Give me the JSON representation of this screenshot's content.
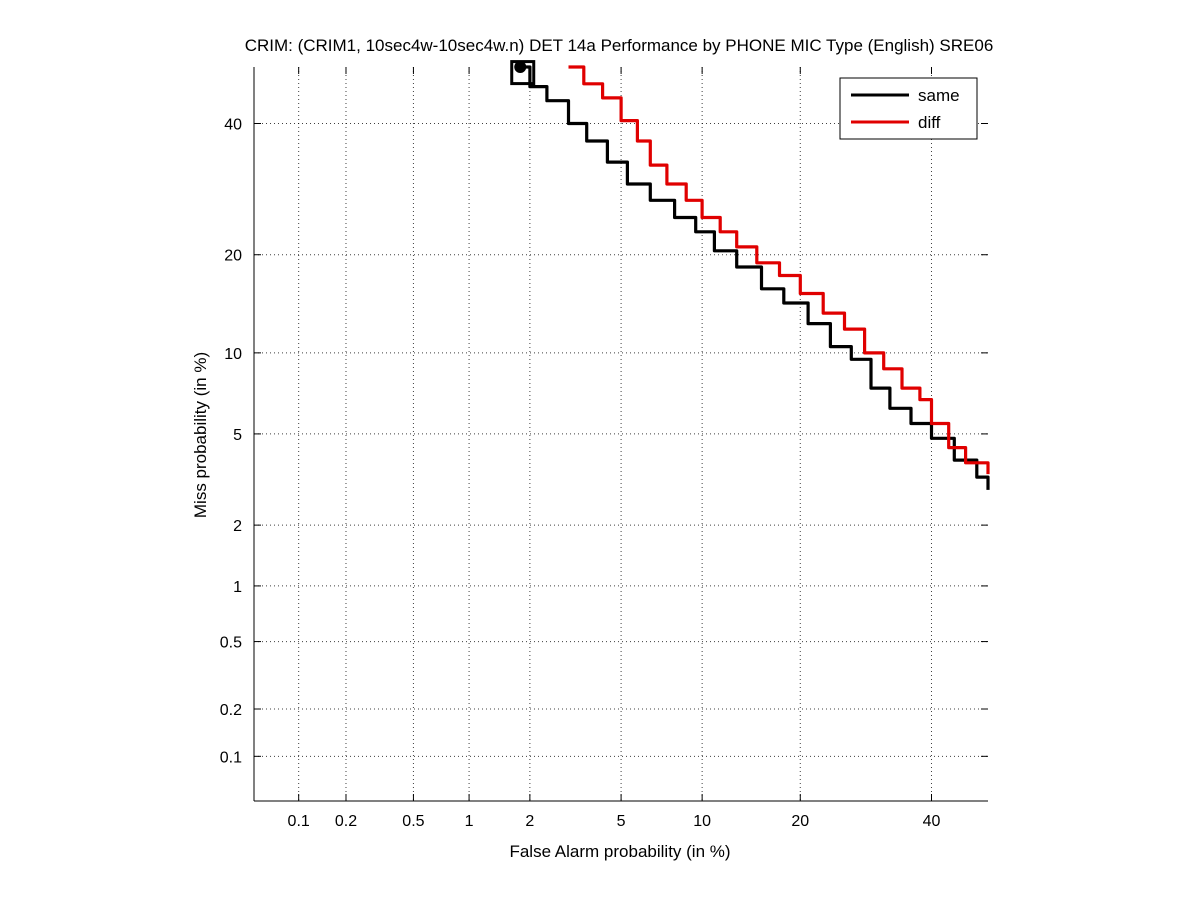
{
  "chart_data": {
    "type": "line",
    "title": "CRIM: (CRIM1, 10sec4w-10sec4w.n) DET 14a Performance by PHONE MIC Type (English) SRE06",
    "xlabel": "False Alarm probability (in %)",
    "ylabel": "Miss probability (in %)",
    "x_scale": "normal-deviate (probit)",
    "y_scale": "normal-deviate (probit)",
    "xlim": [
      0.05,
      50
    ],
    "ylim": [
      0.05,
      50
    ],
    "x_ticks": [
      0.1,
      0.2,
      0.5,
      1,
      2,
      5,
      10,
      20,
      40
    ],
    "x_tick_labels": [
      "0.1",
      "0.2",
      "0.5",
      "1",
      "2",
      "5",
      "10",
      "20",
      "40"
    ],
    "y_ticks": [
      0.1,
      0.2,
      0.5,
      1,
      2,
      5,
      10,
      20,
      40
    ],
    "y_tick_labels": [
      "0.1",
      "0.2",
      "0.5",
      "1",
      "2",
      "5",
      "10",
      "20",
      "40"
    ],
    "grid": true,
    "legend_position": "top-right",
    "series": [
      {
        "name": "same",
        "color": "#000000",
        "x": [
          1.75,
          2.0,
          2.4,
          3.0,
          3.6,
          4.4,
          5.3,
          6.5,
          8.0,
          9.5,
          11.0,
          13.0,
          15.5,
          18.0,
          21.0,
          24.0,
          27.0,
          30.0,
          33.0,
          36.5,
          40.0,
          44.0,
          48.0,
          50.0
        ],
        "y": [
          50.0,
          46.5,
          44.0,
          40.0,
          37.0,
          33.5,
          30.0,
          27.5,
          25.0,
          23.0,
          20.5,
          18.5,
          16.0,
          14.5,
          12.5,
          10.5,
          9.5,
          7.5,
          6.3,
          5.5,
          4.8,
          3.9,
          3.3,
          2.9
        ]
      },
      {
        "name": "diff",
        "color": "#e00000",
        "x": [
          3.0,
          3.5,
          4.2,
          5.0,
          5.8,
          6.5,
          7.5,
          8.8,
          10.0,
          11.5,
          13.0,
          15.0,
          17.5,
          20.0,
          23.0,
          26.0,
          29.0,
          32.0,
          35.0,
          38.0,
          40.0,
          43.0,
          46.0,
          50.0
        ],
        "y": [
          50.0,
          47.0,
          44.5,
          40.5,
          37.0,
          33.0,
          30.0,
          27.5,
          25.0,
          23.0,
          21.0,
          19.0,
          17.5,
          15.5,
          13.5,
          12.0,
          10.0,
          8.8,
          7.5,
          6.8,
          5.5,
          4.4,
          3.8,
          3.4
        ]
      }
    ],
    "markers": [
      {
        "shape": "square",
        "color": "#000000",
        "x": 1.85,
        "y": 49.0
      },
      {
        "shape": "filled-circle",
        "color": "#000000",
        "x": 1.8,
        "y": 50.0
      }
    ]
  }
}
